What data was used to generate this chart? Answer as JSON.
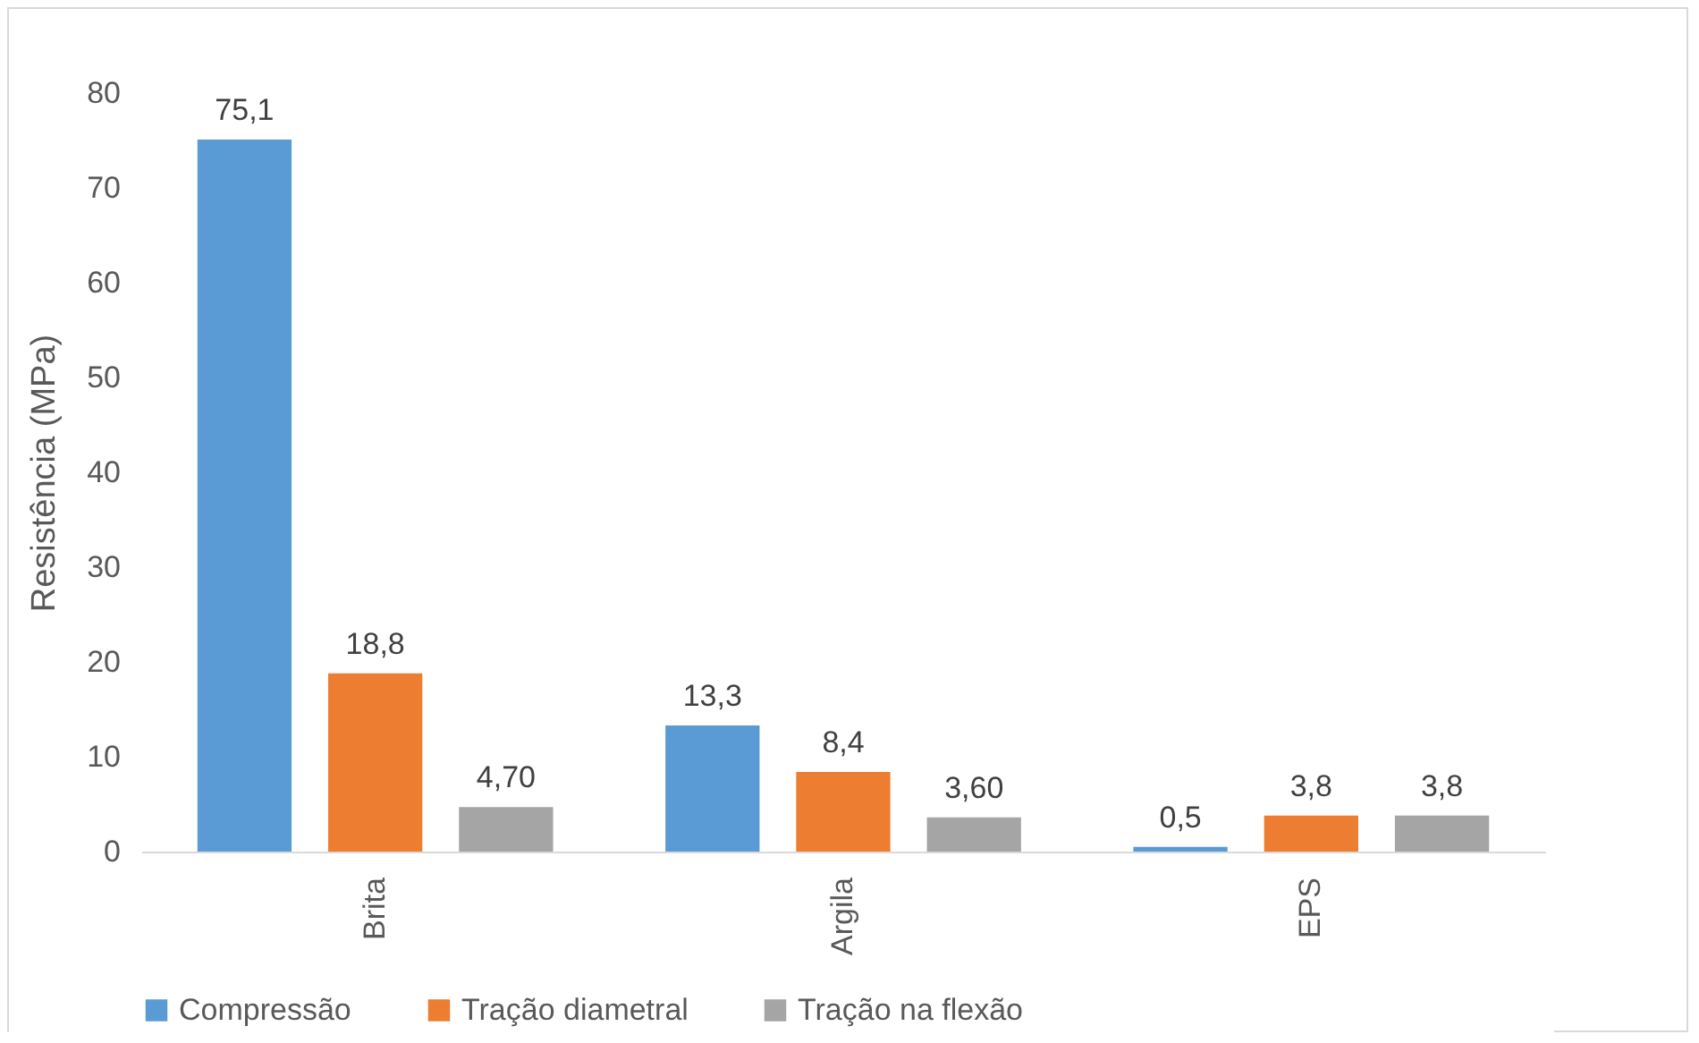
{
  "chart_data": {
    "type": "bar",
    "ylabel": "Resistência (MPa)",
    "categories": [
      "Brita",
      "Argila",
      "EPS"
    ],
    "series": [
      {
        "name": "Compressão",
        "color": "#5b9bd5",
        "values": [
          75.1,
          13.3,
          0.5
        ],
        "value_labels": [
          "75,1",
          "13,3",
          "0,5"
        ]
      },
      {
        "name": "Tração diametral",
        "color": "#ed7d31",
        "values": [
          18.8,
          8.4,
          3.8
        ],
        "value_labels": [
          "18,8",
          "8,4",
          "3,8"
        ]
      },
      {
        "name": "Tração na flexão",
        "color": "#a5a5a5",
        "values": [
          4.7,
          3.6,
          3.8
        ],
        "value_labels": [
          "4,70",
          "3,60",
          "3,8"
        ]
      }
    ],
    "ylim": [
      0,
      80
    ],
    "yticks": [
      0,
      10,
      20,
      30,
      40,
      50,
      60,
      70,
      80
    ],
    "grid": false,
    "legend": "bottom"
  }
}
